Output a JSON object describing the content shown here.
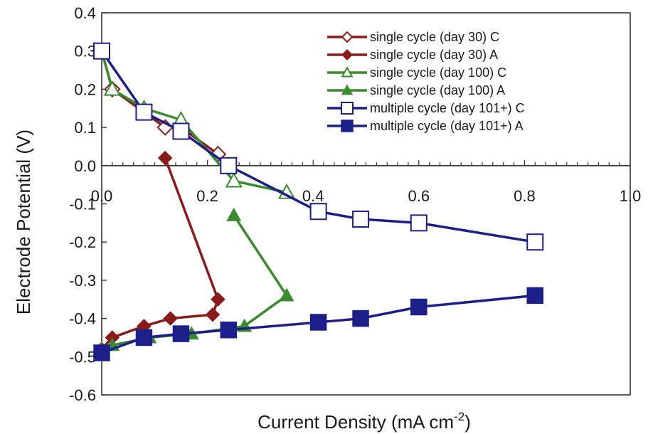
{
  "chart_data": {
    "type": "line",
    "xlabel": "Current Density (mA cm",
    "xlabel_sup": "-2",
    "xlabel_tail": ")",
    "ylabel": "Electrode Potential (V)",
    "xlim": [
      0.0,
      1.0
    ],
    "ylim": [
      -0.6,
      0.4
    ],
    "x_ticks": [
      0.0,
      0.2,
      0.4,
      0.6,
      0.8,
      1.0
    ],
    "x_tick_labels": [
      "0.0",
      "0.2",
      "0.4",
      "0.6",
      "0.8",
      "1.0"
    ],
    "y_ticks": [
      0.4,
      0.3,
      0.2,
      0.1,
      0.0,
      -0.1,
      -0.2,
      -0.3,
      -0.4,
      -0.5,
      -0.6
    ],
    "y_tick_labels": [
      "0.4",
      "0.3",
      "0.2",
      "0.1",
      "0.0",
      "-0.1",
      "-0.2",
      "-0.3",
      "-0.4",
      "-0.5",
      "-0.6"
    ],
    "grid": false,
    "legend_position": "top-right",
    "series": [
      {
        "name": "single cycle (day 30) C",
        "color": "#8b1a1a",
        "marker": "diamond-open",
        "x": [
          0.0,
          0.02,
          0.08,
          0.12,
          0.15,
          0.22
        ],
        "y": [
          0.3,
          0.2,
          0.14,
          0.1,
          0.1,
          0.03
        ]
      },
      {
        "name": "single cycle (day 30) A",
        "color": "#8b1a1a",
        "marker": "diamond-filled",
        "x": [
          0.0,
          0.02,
          0.08,
          0.13,
          0.21,
          0.22,
          0.12
        ],
        "y": [
          -0.48,
          -0.45,
          -0.42,
          -0.4,
          -0.39,
          -0.35,
          0.02
        ]
      },
      {
        "name": "single cycle (day 100) C",
        "color": "#3a8a2e",
        "marker": "triangle-open",
        "x": [
          0.0,
          0.02,
          0.08,
          0.15,
          0.25,
          0.35
        ],
        "y": [
          0.3,
          0.2,
          0.15,
          0.12,
          -0.04,
          -0.07
        ]
      },
      {
        "name": "single cycle (day 100) A",
        "color": "#3a8a2e",
        "marker": "triangle-filled",
        "x": [
          0.0,
          0.02,
          0.09,
          0.17,
          0.27,
          0.35,
          0.25
        ],
        "y": [
          -0.48,
          -0.47,
          -0.45,
          -0.44,
          -0.42,
          -0.34,
          -0.13
        ]
      },
      {
        "name": "multiple cycle (day 101+) C",
        "color": "#1c1f8a",
        "marker": "square-open",
        "x": [
          0.0,
          0.08,
          0.15,
          0.24,
          0.41,
          0.49,
          0.6,
          0.82
        ],
        "y": [
          0.3,
          0.14,
          0.09,
          0.0,
          -0.12,
          -0.14,
          -0.15,
          -0.2
        ]
      },
      {
        "name": "multiple cycle (day 101+) A",
        "color": "#1c1f8a",
        "marker": "square-filled",
        "x": [
          0.0,
          0.08,
          0.15,
          0.24,
          0.41,
          0.49,
          0.6,
          0.82
        ],
        "y": [
          -0.49,
          -0.45,
          -0.44,
          -0.43,
          -0.41,
          -0.4,
          -0.37,
          -0.34
        ]
      }
    ]
  }
}
